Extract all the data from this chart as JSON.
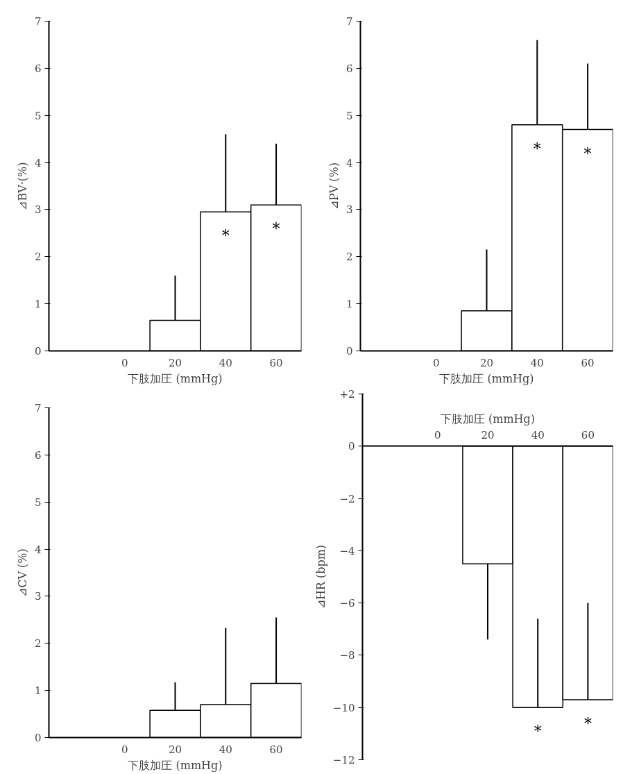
{
  "chart_data": [
    {
      "type": "bar",
      "categories": [
        "0",
        "20",
        "40",
        "60"
      ],
      "values": [
        null,
        0.65,
        2.95,
        3.1
      ],
      "errors": [
        null,
        [
          0.65,
          1.6
        ],
        [
          2.95,
          4.6
        ],
        [
          3.1,
          4.4
        ]
      ],
      "color": "#ffffff",
      "ylim": [
        0,
        7
      ],
      "yticks": [
        0,
        1,
        2,
        3,
        4,
        5,
        6,
        7
      ],
      "xlabel": "下肢加圧 (mmHg)",
      "ylabel": "⊿BV·(%)",
      "grid": false,
      "annotations": [
        {
          "text": "*",
          "x": "40",
          "y": 2.95
        },
        {
          "text": "*",
          "x": "60",
          "y": 3.1
        }
      ]
    },
    {
      "type": "bar",
      "categories": [
        "0",
        "20",
        "40",
        "60"
      ],
      "values": [
        null,
        0.85,
        4.8,
        4.7
      ],
      "errors": [
        null,
        [
          0.85,
          2.15
        ],
        [
          4.8,
          6.6
        ],
        [
          4.7,
          6.1
        ]
      ],
      "color": "#ffffff",
      "ylim": [
        0,
        7
      ],
      "yticks": [
        0,
        1,
        2,
        3,
        4,
        5,
        6,
        7
      ],
      "xlabel": "下肢加圧 (mmHg)",
      "ylabel": "⊿PV (%)",
      "grid": false,
      "annotations": [
        {
          "text": "*",
          "x": "40",
          "y": 4.8
        },
        {
          "text": "*",
          "x": "60",
          "y": 4.7
        }
      ]
    },
    {
      "type": "bar",
      "categories": [
        "0",
        "20",
        "40",
        "60"
      ],
      "values": [
        null,
        0.58,
        0.7,
        1.15
      ],
      "errors": [
        null,
        [
          0.58,
          1.17
        ],
        [
          0.7,
          2.33
        ],
        [
          1.15,
          2.55
        ]
      ],
      "color": "#ffffff",
      "ylim": [
        0,
        7
      ],
      "yticks": [
        0,
        1,
        2,
        3,
        4,
        5,
        6,
        7
      ],
      "xlabel": "下肢加圧 (mmHg)",
      "ylabel": "⊿CV (%)",
      "grid": false
    },
    {
      "type": "bar",
      "categories": [
        "0",
        "20",
        "40",
        "60"
      ],
      "values": [
        null,
        -4.5,
        -10,
        -9.7
      ],
      "errors": [
        null,
        [
          -7.4,
          -4.5
        ],
        [
          -10,
          -6.6
        ],
        [
          -9.7,
          -6.0
        ]
      ],
      "color": "#ffffff",
      "ylim": [
        -12,
        2
      ],
      "yticks": [
        {
          "value": 2,
          "label": "+2"
        },
        0,
        -2,
        -4,
        -6,
        -8,
        -10,
        -12
      ],
      "x2label": "下肢加圧 (mmHg)",
      "ylabel": "⊿HR (bpm)",
      "grid": false,
      "annotations": [
        {
          "text": "*",
          "x": "40",
          "y": -10
        },
        {
          "text": "*",
          "x": "60",
          "y": -9.7
        }
      ]
    }
  ]
}
